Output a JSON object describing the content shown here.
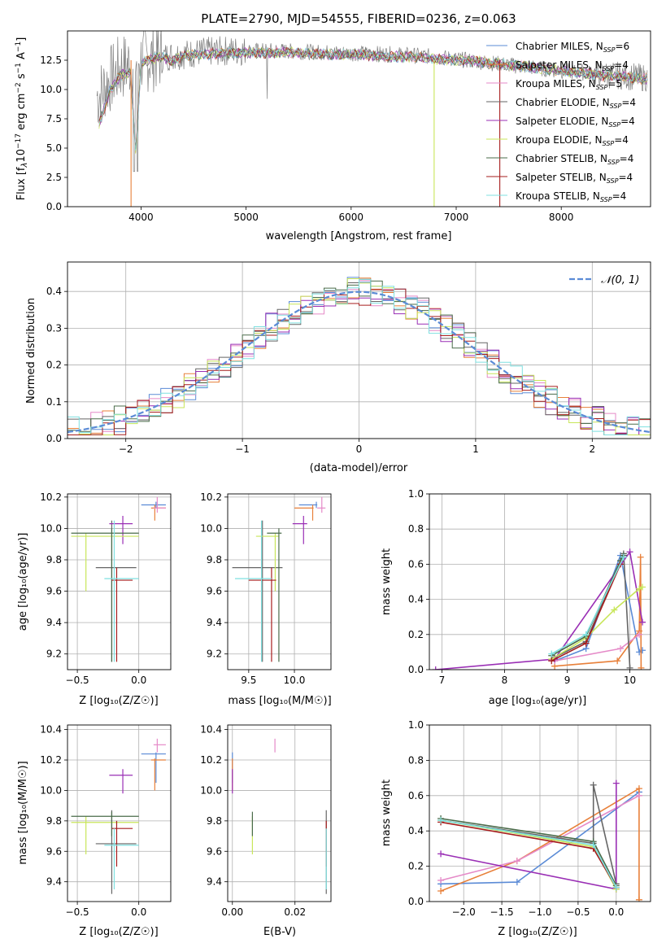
{
  "colors": {
    "chabrier_miles": "#5b8bd6",
    "salpeter_miles": "#e8803a",
    "kroupa_miles": "#e58ac8",
    "chabrier_elodie": "#666666",
    "salpeter_elodie": "#9a2fb5",
    "kroupa_elodie": "#c8e65a",
    "chabrier_stelib": "#4a6b4a",
    "salpeter_stelib": "#a61d1d",
    "kroupa_stelib": "#7fe0e0",
    "data": "#808080",
    "normal": "#5b8bd6"
  },
  "chart_data": [
    {
      "id": "spectrum",
      "type": "line",
      "title": "PLATE=2790, MJD=54555, FIBERID=0236, z=0.063",
      "xlabel": "wavelength [Angstrom, rest frame]",
      "ylabel": "Flux [f_λ10^-17 erg cm^-2 s^-1 A^-1]",
      "ylabel_parts": {
        "a": "Flux [f",
        "b": "λ",
        "c": "10",
        "d": "−17",
        "e": " erg cm",
        "f": "−2",
        "g": " s",
        "h": "−1",
        "i": " A",
        "j": "−1",
        "k": "]"
      },
      "xlim": [
        3300,
        8850
      ],
      "ylim": [
        0,
        15
      ],
      "xticks": [
        "4000",
        "5000",
        "6000",
        "7000",
        "8000"
      ],
      "xtick_values": [
        4000,
        5000,
        6000,
        7000,
        8000
      ],
      "yticks": [
        "0.0",
        "2.5",
        "5.0",
        "7.5",
        "10.0",
        "12.5"
      ],
      "ytick_values": [
        0,
        2.5,
        5,
        7.5,
        10,
        12.5
      ],
      "legend_position": "right",
      "legend": [
        {
          "name": "Chabrier MILES",
          "nssp": "6"
        },
        {
          "name": "Salpeter MILES",
          "nssp": "4"
        },
        {
          "name": "Kroupa MILES",
          "nssp": "5"
        },
        {
          "name": "Chabrier ELODIE",
          "nssp": "4"
        },
        {
          "name": "Salpeter ELODIE",
          "nssp": "4"
        },
        {
          "name": "Kroupa ELODIE",
          "nssp": "4"
        },
        {
          "name": "Chabrier STELIB",
          "nssp": "4"
        },
        {
          "name": "Salpeter STELIB",
          "nssp": "4"
        },
        {
          "name": "Kroupa STELIB",
          "nssp": "4"
        }
      ],
      "nssp_prefix": "N",
      "nssp_sub": "SSP",
      "data_envelope": {
        "x": [
          3600,
          3700,
          3800,
          3900,
          4000,
          4100,
          4200,
          4400,
          4600,
          4800,
          5000,
          5300,
          5600,
          6000,
          6400,
          6800,
          7200,
          7600,
          8000,
          8400,
          8800
        ],
        "y": [
          9.5,
          10.8,
          11.8,
          12.2,
          12.6,
          12.7,
          12.8,
          13.0,
          13.2,
          13.3,
          13.3,
          13.3,
          13.2,
          13.1,
          13.0,
          12.8,
          12.4,
          12.0,
          11.6,
          11.3,
          11.0
        ]
      },
      "model_x": [
        3600,
        3700,
        3800,
        3900,
        3950,
        4000,
        4100,
        4200,
        4300,
        4400,
        4600,
        4800,
        5000,
        5200,
        5400,
        5600,
        5800,
        6000,
        6200,
        6400,
        6600,
        6800,
        7000,
        7200,
        7400,
        7600,
        7800,
        8000,
        8200,
        8400,
        8600,
        8800
      ],
      "model_y": [
        7.0,
        9.8,
        11.2,
        11.4,
        4.5,
        12.3,
        12.6,
        12.8,
        12.4,
        12.9,
        13.0,
        13.1,
        13.2,
        13.1,
        13.2,
        13.1,
        13.0,
        13.0,
        12.9,
        12.8,
        12.8,
        12.6,
        12.5,
        12.4,
        12.2,
        12.0,
        11.8,
        11.6,
        11.4,
        11.2,
        11.1,
        10.9
      ],
      "model_drops": [
        {
          "series": "salpeter_miles",
          "x": 3905
        },
        {
          "series": "kroupa_elodie",
          "x": 6790
        },
        {
          "series": "salpeter_stelib",
          "x": 7415
        }
      ]
    },
    {
      "id": "residuals",
      "type": "line",
      "xlabel": "(data-model)/error",
      "ylabel": "Normed distribution",
      "xlim": [
        -2.5,
        2.5
      ],
      "ylim": [
        0,
        0.48
      ],
      "xticks": [
        "−2",
        "−1",
        "0",
        "1",
        "2"
      ],
      "xtick_values": [
        -2,
        -1,
        0,
        1,
        2
      ],
      "yticks": [
        "0.0",
        "0.1",
        "0.2",
        "0.3",
        "0.4"
      ],
      "ytick_values": [
        0,
        0.1,
        0.2,
        0.3,
        0.4
      ],
      "grid": true,
      "legend_position": "top-right",
      "normal_label": "𝒩(0, 1)",
      "bin_width": 0.1
    },
    {
      "id": "age-vs-Z",
      "type": "scatter",
      "xlabel": "Z [log₁₀(Z/Z☉)]",
      "ylabel": "age  [log₁₀(age/yr)]",
      "xlim": [
        -0.58,
        0.26
      ],
      "ylim": [
        9.1,
        10.22
      ],
      "xticks": [
        "−0.5",
        "0.0"
      ],
      "xtick_values": [
        -0.5,
        0
      ],
      "yticks": [
        "9.2",
        "9.4",
        "9.6",
        "9.8",
        "10.0",
        "10.2"
      ],
      "ytick_values": [
        9.2,
        9.4,
        9.6,
        9.8,
        10.0,
        10.2
      ],
      "grid": true
    },
    {
      "id": "age-vs-mass",
      "type": "scatter",
      "xlabel": "mass [log₁₀(M/M☉)]",
      "xlim": [
        9.27,
        10.4
      ],
      "ylim": [
        9.1,
        10.22
      ],
      "xticks": [
        "9.5",
        "10.0"
      ],
      "xtick_values": [
        9.5,
        10.0
      ],
      "yticks": [
        "9.2",
        "9.4",
        "9.6",
        "9.8",
        "10.0",
        "10.2"
      ],
      "ytick_values": [
        9.2,
        9.4,
        9.6,
        9.8,
        10.0,
        10.2
      ],
      "grid": true
    },
    {
      "id": "massweight-vs-age",
      "type": "line",
      "xlabel": "age  [log₁₀(age/yr)]",
      "ylabel": "mass weight",
      "xlim": [
        6.8,
        10.33
      ],
      "ylim": [
        0,
        1.0
      ],
      "xticks": [
        "7",
        "8",
        "9",
        "10"
      ],
      "xtick_values": [
        7,
        8,
        9,
        10
      ],
      "yticks": [
        "0.0",
        "0.2",
        "0.4",
        "0.6",
        "0.8",
        "1.0"
      ],
      "ytick_values": [
        0,
        0.2,
        0.4,
        0.6,
        0.8,
        1.0
      ],
      "grid": true
    },
    {
      "id": "mass-vs-Z",
      "type": "scatter",
      "xlabel": "Z [log₁₀(Z/Z☉)]",
      "ylabel": "mass [log₁₀(M/M☉)]",
      "xlim": [
        -0.58,
        0.26
      ],
      "ylim": [
        9.27,
        10.43
      ],
      "xticks": [
        "−0.5",
        "0.0"
      ],
      "xtick_values": [
        -0.5,
        0
      ],
      "yticks": [
        "9.4",
        "9.6",
        "9.8",
        "10.0",
        "10.2",
        "10.4"
      ],
      "ytick_values": [
        9.4,
        9.6,
        9.8,
        10.0,
        10.2,
        10.4
      ],
      "grid": true
    },
    {
      "id": "mass-vs-ebv",
      "type": "scatter",
      "xlabel": "E(B-V)",
      "xlim": [
        -0.0015,
        0.0315
      ],
      "ylim": [
        9.27,
        10.43
      ],
      "xticks": [
        "0.00",
        "0.02"
      ],
      "xtick_values": [
        0,
        0.02
      ],
      "yticks": [
        "9.4",
        "9.6",
        "9.8",
        "10.0",
        "10.2",
        "10.4"
      ],
      "ytick_values": [
        9.4,
        9.6,
        9.8,
        10.0,
        10.2,
        10.4
      ],
      "grid": true
    },
    {
      "id": "massweight-vs-Z",
      "type": "line",
      "xlabel": "Z [log₁₀(Z/Z☉)]",
      "ylabel": "mass weight",
      "xlim": [
        -2.45,
        0.45
      ],
      "ylim": [
        0,
        1.0
      ],
      "xticks": [
        "−2.0",
        "−1.5",
        "−1.0",
        "−0.5",
        "0.0"
      ],
      "xtick_values": [
        -2.0,
        -1.5,
        -1.0,
        -0.5,
        0
      ],
      "yticks": [
        "0.0",
        "0.2",
        "0.4",
        "0.6",
        "0.8",
        "1.0"
      ],
      "ytick_values": [
        0,
        0.2,
        0.4,
        0.6,
        0.8,
        1.0
      ],
      "grid": true
    }
  ],
  "models": [
    {
      "key": "chabrier_miles",
      "age": 10.15,
      "age_lo": 10.13,
      "age_hi": 10.17,
      "Z": 0.14,
      "Z_lo": 0.02,
      "Z_hi": 0.22,
      "mass": 10.24,
      "mass_lo": 10.05,
      "mass_hi": 10.25,
      "ebv": 0.0,
      "w_age": [
        [
          8.8,
          0.05
        ],
        [
          9.3,
          0.12
        ],
        [
          9.85,
          0.65
        ],
        [
          10.15,
          0.1
        ],
        [
          10.2,
          0.11
        ]
      ],
      "w_Z": [
        [
          -2.3,
          0.1
        ],
        [
          -1.3,
          0.11
        ],
        [
          0.3,
          0.62
        ]
      ]
    },
    {
      "key": "salpeter_miles",
      "age": 10.13,
      "age_lo": 10.05,
      "age_hi": 10.15,
      "Z": 0.13,
      "Z_lo": 0.1,
      "Z_hi": 0.22,
      "mass": 10.2,
      "mass_lo": 10.0,
      "mass_hi": 10.21,
      "ebv": 0.0,
      "w_age": [
        [
          8.8,
          0.02
        ],
        [
          9.8,
          0.05
        ],
        [
          10.15,
          0.22
        ],
        [
          10.17,
          0.64
        ],
        [
          10.18,
          0.01
        ]
      ],
      "w_Z": [
        [
          -2.3,
          0.06
        ],
        [
          -1.3,
          0.23
        ],
        [
          0.3,
          0.64
        ],
        [
          0.3,
          0.01
        ]
      ]
    },
    {
      "key": "kroupa_miles",
      "age": 10.13,
      "age_lo": 10.1,
      "age_hi": 10.2,
      "Z": 0.15,
      "Z_lo": 0.12,
      "Z_hi": 0.22,
      "mass": 10.3,
      "mass_lo": 10.25,
      "mass_hi": 10.34,
      "ebv": 0.0136,
      "w_age": [
        [
          8.8,
          0.05
        ],
        [
          9.85,
          0.12
        ],
        [
          10.15,
          0.2
        ]
      ],
      "w_Z": [
        [
          -2.3,
          0.12
        ],
        [
          -1.3,
          0.23
        ],
        [
          0.3,
          0.6
        ]
      ]
    },
    {
      "key": "chabrier_elodie",
      "age": 9.75,
      "age_lo": 9.15,
      "age_hi": 10.05,
      "Z": -0.22,
      "Z_lo": -0.35,
      "Z_hi": -0.02,
      "mass": 9.65,
      "mass_lo": 9.32,
      "mass_hi": 9.87,
      "ebv": 0.03,
      "w_age": [
        [
          8.8,
          0.07
        ],
        [
          9.3,
          0.16
        ],
        [
          9.9,
          0.66
        ],
        [
          10.0,
          0.01
        ]
      ],
      "w_Z": [
        [
          -2.3,
          0.46
        ],
        [
          -0.3,
          0.33
        ],
        [
          -0.3,
          0.66
        ],
        [
          0.0,
          0.1
        ]
      ]
    },
    {
      "key": "salpeter_elodie",
      "age": 10.03,
      "age_lo": 9.9,
      "age_hi": 10.08,
      "Z": -0.13,
      "Z_lo": -0.24,
      "Z_hi": -0.05,
      "mass": 10.1,
      "mass_lo": 9.98,
      "mass_hi": 10.14,
      "ebv": 0.0,
      "w_age": [
        [
          6.9,
          0.0
        ],
        [
          8.8,
          0.06
        ],
        [
          10.0,
          0.67
        ],
        [
          10.2,
          0.27
        ]
      ],
      "w_Z": [
        [
          -2.3,
          0.27
        ],
        [
          0.0,
          0.07
        ],
        [
          0.0,
          0.67
        ]
      ]
    },
    {
      "key": "kroupa_elodie",
      "age": 9.95,
      "age_lo": 9.6,
      "age_hi": 9.97,
      "Z": -0.43,
      "Z_lo": -0.55,
      "Z_hi": 0.0,
      "mass": 9.79,
      "mass_lo": 9.58,
      "mass_hi": 9.83,
      "ebv": 0.0064,
      "w_age": [
        [
          8.75,
          0.06
        ],
        [
          9.3,
          0.18
        ],
        [
          9.75,
          0.34
        ],
        [
          10.15,
          0.46
        ],
        [
          10.2,
          0.47
        ]
      ],
      "w_Z": [
        [
          -2.3,
          0.46
        ],
        [
          -0.3,
          0.31
        ],
        [
          0.0,
          0.07
        ]
      ]
    },
    {
      "key": "chabrier_stelib",
      "age": 9.97,
      "age_lo": 9.15,
      "age_hi": 10.0,
      "Z": -0.22,
      "Z_lo": -0.55,
      "Z_hi": 0.0,
      "mass": 9.83,
      "mass_lo": 9.7,
      "mass_hi": 9.86,
      "ebv": 0.0064,
      "w_age": [
        [
          8.75,
          0.08
        ],
        [
          9.3,
          0.19
        ],
        [
          9.85,
          0.62
        ],
        [
          9.9,
          0.65
        ]
      ],
      "w_Z": [
        [
          -2.3,
          0.47
        ],
        [
          -0.3,
          0.34
        ],
        [
          0.0,
          0.09
        ]
      ]
    },
    {
      "key": "salpeter_stelib",
      "age": 9.67,
      "age_lo": 9.15,
      "age_hi": 9.75,
      "Z": -0.18,
      "Z_lo": -0.22,
      "Z_hi": -0.05,
      "mass": 9.75,
      "mass_lo": 9.5,
      "mass_hi": 9.8,
      "ebv": 0.03,
      "w_age": [
        [
          8.75,
          0.05
        ],
        [
          9.3,
          0.15
        ],
        [
          9.85,
          0.6
        ]
      ],
      "w_Z": [
        [
          -2.3,
          0.45
        ],
        [
          -0.3,
          0.3
        ],
        [
          0.0,
          0.08
        ]
      ]
    },
    {
      "key": "kroupa_stelib",
      "age": 9.68,
      "age_lo": 9.15,
      "age_hi": 10.05,
      "Z": -0.2,
      "Z_lo": -0.28,
      "Z_hi": 0.0,
      "mass": 9.64,
      "mass_lo": 9.35,
      "mass_hi": 9.75,
      "ebv": 0.03,
      "w_age": [
        [
          8.75,
          0.09
        ],
        [
          9.3,
          0.2
        ],
        [
          9.9,
          0.64
        ]
      ],
      "w_Z": [
        [
          -2.3,
          0.46
        ],
        [
          -0.3,
          0.32
        ],
        [
          0.0,
          0.08
        ]
      ]
    }
  ]
}
